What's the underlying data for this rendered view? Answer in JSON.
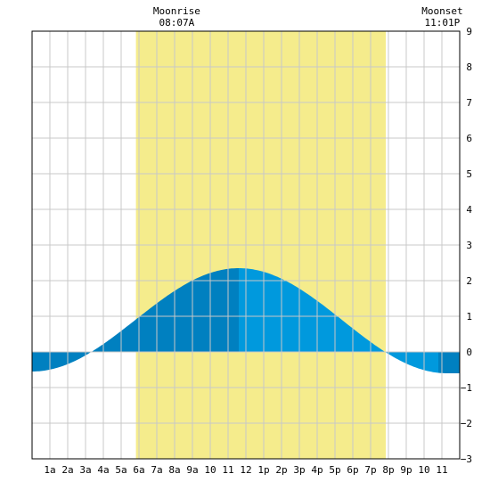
{
  "chart_data": {
    "type": "area",
    "title": "",
    "xlabel": "",
    "ylabel": "",
    "ylim": [
      -3,
      9
    ],
    "xlim": [
      0,
      24
    ],
    "grid": true,
    "x_tick_labels": [
      "1a",
      "2a",
      "3a",
      "4a",
      "5a",
      "6a",
      "7a",
      "8a",
      "9a",
      "10",
      "11",
      "12",
      "1p",
      "2p",
      "3p",
      "4p",
      "5p",
      "6p",
      "7p",
      "8p",
      "9p",
      "10",
      "11"
    ],
    "y_ticks": [
      -3,
      -2,
      -1,
      0,
      1,
      2,
      3,
      4,
      5,
      6,
      7,
      8,
      9
    ],
    "daylight": {
      "start_hour": 5.83,
      "end_hour": 19.85,
      "color": "#f5ec8c"
    },
    "events": [
      {
        "label": "Moonrise",
        "time": "08:07A",
        "hour": 8.12
      },
      {
        "label": "Moonset",
        "time": "11:01P",
        "hour": 23.02
      }
    ],
    "tide": {
      "low1_hour": 0,
      "low1_value": -0.55,
      "high_hour": 11.6,
      "high_value": 2.35,
      "low2_hour": 23.3,
      "low2_value": -0.6,
      "fill_colors": {
        "dark": "#0080c0",
        "light": "#0099dd"
      },
      "shade_change_hours": [
        11.6,
        22.8
      ]
    },
    "colors": {
      "grid": "#c8c8c8",
      "axis": "#000000",
      "background": "#ffffff"
    }
  }
}
